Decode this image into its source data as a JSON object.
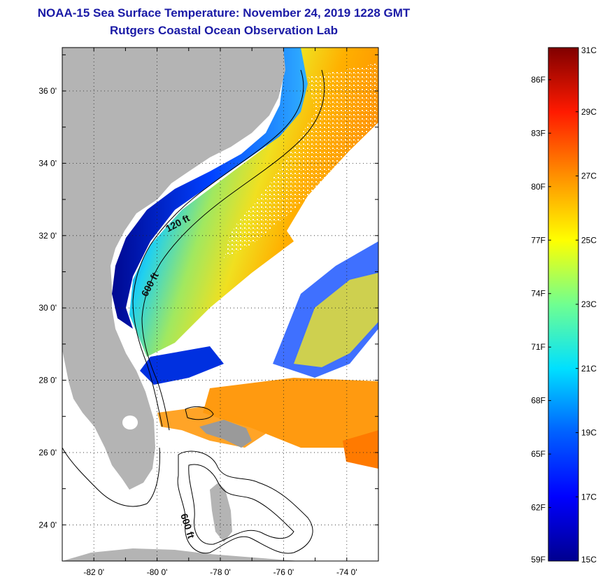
{
  "title": "NOAA-15 Sea Surface Temperature:  November 24, 2019 1228 GMT",
  "subtitle": "Rutgers Coastal Ocean Observation Lab",
  "map": {
    "lon_range": [
      -83,
      -73
    ],
    "lat_range": [
      23,
      37.2
    ],
    "lon_ticks": [
      {
        "value": -82,
        "label": "-82 0'"
      },
      {
        "value": -80,
        "label": "-80 0'"
      },
      {
        "value": -78,
        "label": "-78 0'"
      },
      {
        "value": -76,
        "label": "-76 0'"
      },
      {
        "value": -74,
        "label": "-74 0'"
      }
    ],
    "lat_ticks": [
      {
        "value": 24,
        "label": "24 0'"
      },
      {
        "value": 26,
        "label": "26 0'"
      },
      {
        "value": 28,
        "label": "28 0'"
      },
      {
        "value": 30,
        "label": "30 0'"
      },
      {
        "value": 32,
        "label": "32 0'"
      },
      {
        "value": 34,
        "label": "34 0'"
      },
      {
        "value": 36,
        "label": "36 0'"
      }
    ],
    "grid": true,
    "contour_labels": [
      {
        "text": "120 ft"
      },
      {
        "text": "600 ft"
      },
      {
        "text": "600 ft"
      }
    ],
    "land_color": "#b4b4b4"
  },
  "colorbar": {
    "celsius": [
      {
        "value": 31,
        "label": "31C"
      },
      {
        "value": 29,
        "label": "29C"
      },
      {
        "value": 27,
        "label": "27C"
      },
      {
        "value": 25,
        "label": "25C"
      },
      {
        "value": 23,
        "label": "23C"
      },
      {
        "value": 21,
        "label": "21C"
      },
      {
        "value": 19,
        "label": "19C"
      },
      {
        "value": 17,
        "label": "17C"
      },
      {
        "value": 15,
        "label": "15C"
      }
    ],
    "fahrenheit": [
      {
        "value": 86,
        "label": "86F"
      },
      {
        "value": 83,
        "label": "83F"
      },
      {
        "value": 80,
        "label": "80F"
      },
      {
        "value": 77,
        "label": "77F"
      },
      {
        "value": 74,
        "label": "74F"
      },
      {
        "value": 71,
        "label": "71F"
      },
      {
        "value": 68,
        "label": "68F"
      },
      {
        "value": 65,
        "label": "65F"
      },
      {
        "value": 62,
        "label": "62F"
      },
      {
        "value": 59,
        "label": "59F"
      }
    ],
    "range_c": [
      15,
      31
    ],
    "colors": [
      "#00008f",
      "#0000ff",
      "#0080ff",
      "#00ffff",
      "#80ff80",
      "#ffff00",
      "#ff8000",
      "#ff0000",
      "#800000"
    ]
  }
}
